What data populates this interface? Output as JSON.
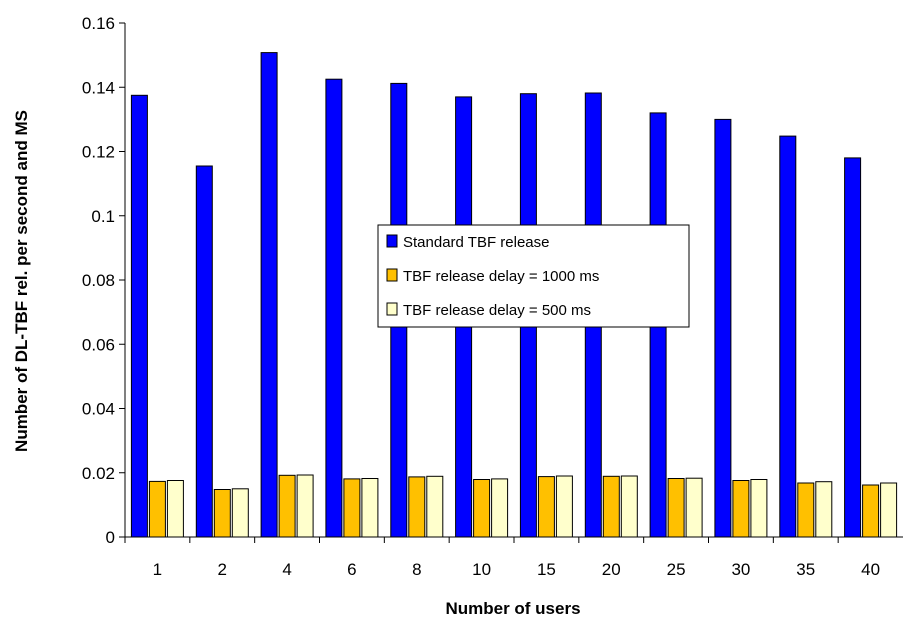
{
  "chart_data": {
    "type": "bar",
    "title": "",
    "xlabel": "Number of users",
    "ylabel": "Number of DL-TBF rel. per second and MS",
    "categories": [
      "1",
      "2",
      "4",
      "6",
      "8",
      "10",
      "15",
      "20",
      "25",
      "30",
      "35",
      "40"
    ],
    "ylim": [
      0,
      0.16
    ],
    "yticks": [
      0,
      0.02,
      0.04,
      0.06,
      0.08,
      0.1,
      0.12,
      0.14,
      0.16
    ],
    "ytick_labels": [
      "0",
      "0.02",
      "0.04",
      "0.06",
      "0.08",
      "0.1",
      "0.12",
      "0.14",
      "0.16"
    ],
    "grid": false,
    "legend_placement": "center",
    "series": [
      {
        "name": "Standard TBF release",
        "color": "#0000ff",
        "values": [
          0.1375,
          0.1155,
          0.1508,
          0.1425,
          0.1412,
          0.137,
          0.138,
          0.1382,
          0.132,
          0.13,
          0.1248,
          0.118
        ]
      },
      {
        "name": "TBF release delay = 1000 ms",
        "color": "#ffc000",
        "values": [
          0.0173,
          0.0148,
          0.0192,
          0.0181,
          0.0187,
          0.0179,
          0.0188,
          0.0189,
          0.0182,
          0.0176,
          0.0168,
          0.0162
        ]
      },
      {
        "name": "TBF release delay = 500 ms",
        "color": "#ffffcc",
        "values": [
          0.0176,
          0.015,
          0.0193,
          0.0182,
          0.0189,
          0.0181,
          0.019,
          0.019,
          0.0183,
          0.0179,
          0.0172,
          0.0168
        ]
      }
    ]
  }
}
